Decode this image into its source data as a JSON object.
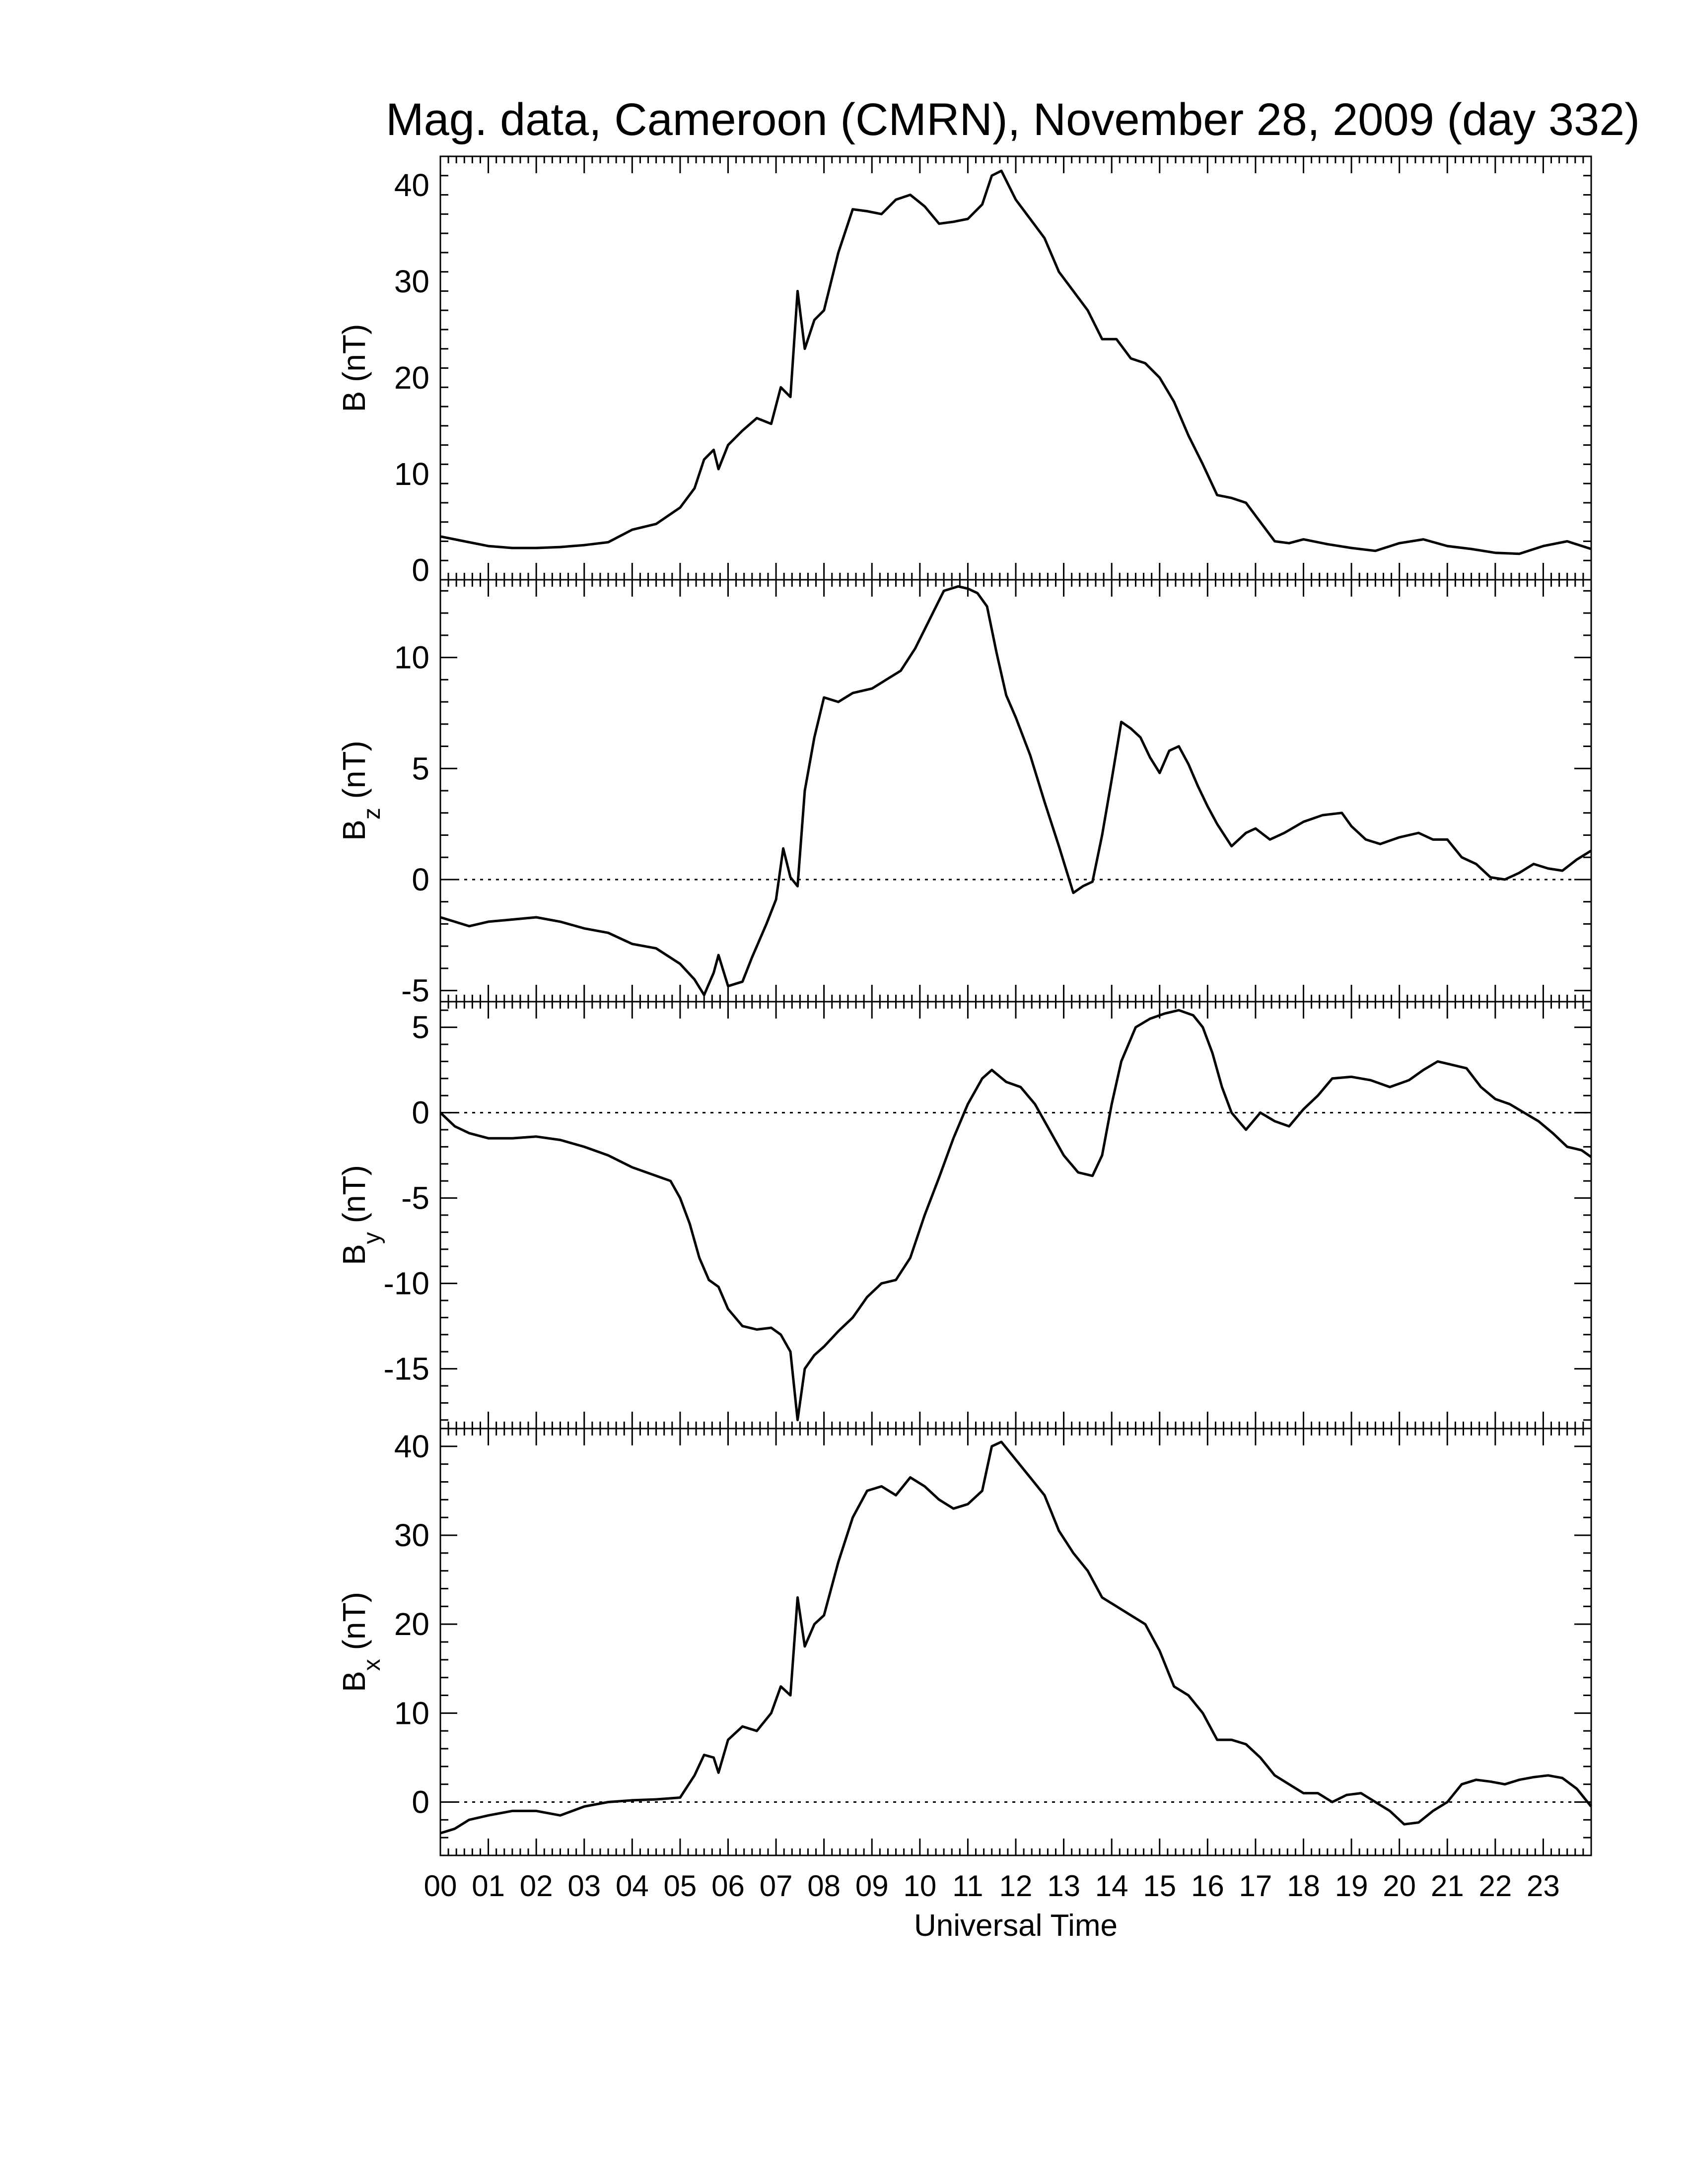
{
  "title": "Mag. data, Cameroon (CMRN), November 28, 2009 (day 332)",
  "xlabel": "Universal Time",
  "xticks": [
    "00",
    "01",
    "02",
    "03",
    "04",
    "05",
    "06",
    "07",
    "08",
    "09",
    "10",
    "11",
    "12",
    "13",
    "14",
    "15",
    "16",
    "17",
    "18",
    "19",
    "20",
    "21",
    "22",
    "23"
  ],
  "colors": {
    "line": "#000000",
    "zero_line": "#000000",
    "background": "#ffffff"
  },
  "chart_data": [
    {
      "type": "line",
      "ylabel": "B (nT)",
      "ylabel_main": "B",
      "ylabel_sub": "",
      "ylabel_unit": "(nT)",
      "xlim": [
        0,
        24
      ],
      "ylim": [
        -1,
        43
      ],
      "yticks": [
        0,
        10,
        20,
        30,
        40
      ],
      "zero_line": false,
      "x": [
        0,
        0.5,
        1,
        1.5,
        2,
        2.5,
        3,
        3.5,
        4,
        4.5,
        5,
        5.3,
        5.5,
        5.7,
        5.8,
        6,
        6.3,
        6.6,
        6.9,
        7.1,
        7.3,
        7.45,
        7.6,
        7.8,
        8,
        8.3,
        8.6,
        8.9,
        9.2,
        9.5,
        9.8,
        10.1,
        10.4,
        10.7,
        11,
        11.3,
        11.5,
        11.7,
        12,
        12.3,
        12.6,
        12.9,
        13.2,
        13.5,
        13.8,
        14.1,
        14.4,
        14.7,
        15,
        15.3,
        15.6,
        15.9,
        16.2,
        16.5,
        16.8,
        17.1,
        17.4,
        17.7,
        18,
        18.5,
        19,
        19.5,
        20,
        20.5,
        21,
        21.5,
        22,
        22.5,
        23,
        23.5,
        24
      ],
      "y": [
        3.5,
        3,
        2.5,
        2.3,
        2.3,
        2.4,
        2.6,
        2.9,
        4.2,
        4.8,
        6.5,
        8.5,
        11.5,
        12.5,
        10.5,
        13,
        14.5,
        15.8,
        15.2,
        19,
        18,
        29,
        23,
        26,
        27,
        33,
        37.5,
        37.3,
        37,
        38.5,
        39,
        37.8,
        36,
        36.2,
        36.5,
        38,
        41,
        41.5,
        38.5,
        36.5,
        34.5,
        31,
        29,
        27,
        24,
        24,
        22,
        21.5,
        20,
        17.5,
        14,
        11,
        7.8,
        7.5,
        7,
        5,
        3,
        2.8,
        3.2,
        2.7,
        2.3,
        2,
        2.8,
        3.2,
        2.5,
        2.2,
        1.8,
        1.7,
        2.5,
        3,
        2.2
      ]
    },
    {
      "type": "line",
      "ylabel": "Bz (nT)",
      "ylabel_main": "B",
      "ylabel_sub": "z",
      "ylabel_unit": "(nT)",
      "xlim": [
        0,
        24
      ],
      "ylim": [
        -5.5,
        13.5
      ],
      "yticks": [
        -5,
        0,
        5,
        10
      ],
      "zero_line": true,
      "x": [
        0,
        0.3,
        0.6,
        1,
        1.5,
        2,
        2.5,
        3,
        3.5,
        4,
        4.5,
        5,
        5.3,
        5.5,
        5.7,
        5.8,
        6,
        6.3,
        6.5,
        6.8,
        7,
        7.15,
        7.3,
        7.45,
        7.6,
        7.8,
        8,
        8.3,
        8.6,
        9,
        9.3,
        9.6,
        9.9,
        10.2,
        10.5,
        10.8,
        11,
        11.2,
        11.4,
        11.6,
        11.8,
        12,
        12.3,
        12.6,
        12.9,
        13.2,
        13.4,
        13.6,
        13.8,
        14,
        14.2,
        14.4,
        14.6,
        14.8,
        15,
        15.2,
        15.4,
        15.6,
        15.8,
        16,
        16.2,
        16.5,
        16.8,
        17,
        17.3,
        17.6,
        18,
        18.4,
        18.8,
        19,
        19.3,
        19.6,
        20,
        20.4,
        20.7,
        21,
        21.3,
        21.6,
        21.9,
        22.2,
        22.5,
        22.8,
        23.1,
        23.4,
        23.7,
        24
      ],
      "y": [
        -1.7,
        -1.9,
        -2.1,
        -1.9,
        -1.8,
        -1.7,
        -1.9,
        -2.2,
        -2.4,
        -2.9,
        -3.1,
        -3.8,
        -4.5,
        -5.2,
        -4.2,
        -3.4,
        -4.8,
        -4.6,
        -3.5,
        -2,
        -0.9,
        1.4,
        0.1,
        -0.3,
        4,
        6.4,
        8.2,
        8,
        8.4,
        8.6,
        9,
        9.4,
        10.4,
        11.7,
        13,
        13.2,
        13.1,
        12.9,
        12.3,
        10.2,
        8.3,
        7.3,
        5.6,
        3.5,
        1.5,
        -0.6,
        -0.3,
        -0.1,
        2,
        4.5,
        7.1,
        6.8,
        6.4,
        5.5,
        4.8,
        5.8,
        6,
        5.2,
        4.2,
        3.3,
        2.5,
        1.5,
        2.1,
        2.3,
        1.8,
        2.1,
        2.6,
        2.9,
        3,
        2.4,
        1.8,
        1.6,
        1.9,
        2.1,
        1.8,
        1.8,
        1,
        0.7,
        0.1,
        0,
        0.3,
        0.7,
        0.5,
        0.4,
        0.9,
        1.3
      ]
    },
    {
      "type": "line",
      "ylabel": "By (nT)",
      "ylabel_main": "B",
      "ylabel_sub": "y",
      "ylabel_unit": "(nT)",
      "xlim": [
        0,
        24
      ],
      "ylim": [
        -18.5,
        6.5
      ],
      "yticks": [
        -15,
        -10,
        -5,
        0,
        5
      ],
      "zero_line": true,
      "x": [
        0,
        0.3,
        0.6,
        1,
        1.5,
        2,
        2.5,
        3,
        3.5,
        4,
        4.5,
        4.8,
        5,
        5.2,
        5.4,
        5.6,
        5.8,
        6,
        6.3,
        6.6,
        6.9,
        7.1,
        7.3,
        7.45,
        7.6,
        7.8,
        8,
        8.3,
        8.6,
        8.9,
        9.2,
        9.5,
        9.8,
        10.1,
        10.4,
        10.7,
        11,
        11.3,
        11.5,
        11.8,
        12.1,
        12.4,
        12.7,
        13,
        13.3,
        13.6,
        13.8,
        14,
        14.2,
        14.5,
        14.8,
        15.1,
        15.4,
        15.7,
        15.9,
        16.1,
        16.3,
        16.5,
        16.8,
        17.1,
        17.4,
        17.7,
        18,
        18.3,
        18.6,
        19,
        19.4,
        19.8,
        20.2,
        20.5,
        20.8,
        21.1,
        21.4,
        21.7,
        22,
        22.3,
        22.6,
        22.9,
        23.2,
        23.5,
        23.8,
        24
      ],
      "y": [
        0,
        -0.8,
        -1.2,
        -1.5,
        -1.5,
        -1.4,
        -1.6,
        -2,
        -2.5,
        -3.2,
        -3.7,
        -4,
        -5,
        -6.5,
        -8.5,
        -9.8,
        -10.2,
        -11.5,
        -12.5,
        -12.7,
        -12.6,
        -13,
        -14,
        -18,
        -15,
        -14.2,
        -13.7,
        -12.8,
        -12,
        -10.8,
        -10,
        -9.8,
        -8.5,
        -6,
        -3.8,
        -1.5,
        0.5,
        2,
        2.5,
        1.8,
        1.5,
        0.5,
        -1,
        -2.5,
        -3.5,
        -3.7,
        -2.5,
        0.5,
        3,
        5,
        5.5,
        5.8,
        6,
        5.7,
        5,
        3.5,
        1.5,
        0,
        -1,
        0,
        -0.5,
        -0.8,
        0.2,
        1,
        2,
        2.1,
        1.9,
        1.5,
        1.9,
        2.5,
        3,
        2.8,
        2.6,
        1.5,
        0.8,
        0.5,
        0,
        -0.5,
        -1.2,
        -2,
        -2.2,
        -2.6
      ]
    },
    {
      "type": "line",
      "ylabel": "Bx (nT)",
      "ylabel_main": "B",
      "ylabel_sub": "x",
      "ylabel_unit": "(nT)",
      "xlim": [
        0,
        24
      ],
      "ylim": [
        -6,
        42
      ],
      "yticks": [
        0,
        10,
        20,
        30,
        40
      ],
      "zero_line": true,
      "x": [
        0,
        0.3,
        0.6,
        1,
        1.5,
        2,
        2.5,
        3,
        3.5,
        4,
        4.5,
        5,
        5.3,
        5.5,
        5.7,
        5.8,
        6,
        6.3,
        6.6,
        6.9,
        7.1,
        7.3,
        7.45,
        7.6,
        7.8,
        8,
        8.3,
        8.6,
        8.9,
        9.2,
        9.5,
        9.8,
        10.1,
        10.4,
        10.7,
        11,
        11.3,
        11.5,
        11.7,
        12,
        12.3,
        12.6,
        12.9,
        13.2,
        13.5,
        13.8,
        14.1,
        14.4,
        14.7,
        15,
        15.3,
        15.6,
        15.9,
        16.2,
        16.5,
        16.8,
        17.1,
        17.4,
        17.7,
        18,
        18.3,
        18.6,
        18.9,
        19.2,
        19.5,
        19.8,
        20.1,
        20.4,
        20.7,
        21,
        21.3,
        21.6,
        21.9,
        22.2,
        22.5,
        22.8,
        23.1,
        23.4,
        23.7,
        24
      ],
      "y": [
        -3.5,
        -3,
        -2,
        -1.5,
        -1,
        -1,
        -1.5,
        -0.5,
        0,
        0.2,
        0.3,
        0.5,
        3,
        5.3,
        5,
        3.3,
        7,
        8.5,
        8,
        10,
        13,
        12,
        23,
        17.5,
        20,
        21,
        27,
        32,
        35,
        35.5,
        34.5,
        36.5,
        35.5,
        34,
        33,
        33.5,
        35,
        40,
        40.5,
        38.5,
        36.5,
        34.5,
        30.5,
        28,
        26,
        23,
        22,
        21,
        20,
        17,
        13,
        12,
        10,
        7,
        7,
        6.5,
        5,
        3,
        2,
        1,
        1,
        0,
        0.8,
        1,
        0,
        -1,
        -2.5,
        -2.3,
        -1,
        0,
        2,
        2.5,
        2.3,
        2,
        2.5,
        2.8,
        3,
        2.7,
        1.5,
        -0.5
      ]
    }
  ]
}
